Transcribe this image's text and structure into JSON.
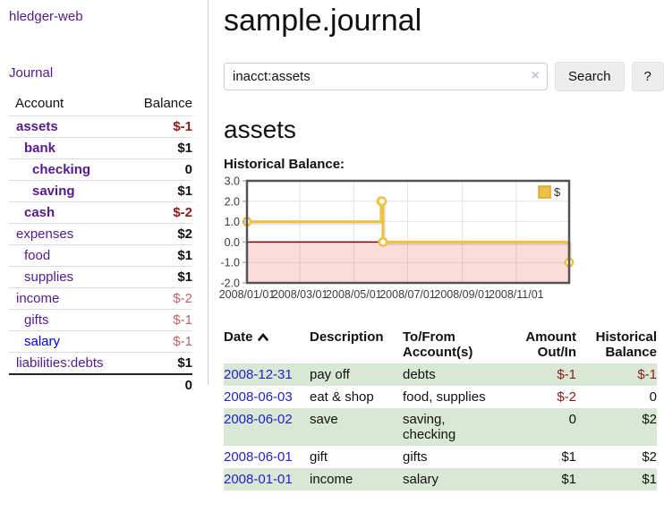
{
  "app": {
    "title": "hledger-web",
    "nav_journal": "Journal"
  },
  "sidebar": {
    "headers": {
      "account": "Account",
      "balance": "Balance"
    },
    "accounts": [
      {
        "name": "assets",
        "balance": "$-1",
        "depth": 1,
        "selected": true
      },
      {
        "name": "bank",
        "balance": "$1",
        "depth": 2,
        "selected": true
      },
      {
        "name": "checking",
        "balance": "0",
        "depth": 3,
        "selected": true
      },
      {
        "name": "saving",
        "balance": "$1",
        "depth": 3,
        "selected": true
      },
      {
        "name": "cash",
        "balance": "$-2",
        "depth": 2,
        "selected": true
      },
      {
        "name": "expenses",
        "balance": "$2",
        "depth": 1,
        "selected": false
      },
      {
        "name": "food",
        "balance": "$1",
        "depth": 2,
        "selected": false
      },
      {
        "name": "supplies",
        "balance": "$1",
        "depth": 2,
        "selected": false
      },
      {
        "name": "income",
        "balance": "$-2",
        "depth": 1,
        "selected": false
      },
      {
        "name": "gifts",
        "balance": "$-1",
        "depth": 2,
        "selected": false
      },
      {
        "name": "salary",
        "balance": "$-1",
        "depth": 2,
        "selected": false,
        "unvisited": true
      },
      {
        "name": "liabilities:debts",
        "balance": "$1",
        "depth": 1,
        "selected": false
      }
    ],
    "total": "0"
  },
  "main": {
    "title": "sample.journal",
    "search": {
      "value": "inacct:assets",
      "clear": "×",
      "button": "Search",
      "help": "?"
    },
    "account_heading": "assets",
    "chart_label": "Historical Balance:"
  },
  "chart_data": {
    "type": "line",
    "title": "Historical Balance:",
    "series": [
      {
        "name": "$",
        "color": "#edc240",
        "step": true,
        "points": [
          [
            "2008-01-01",
            1
          ],
          [
            "2008-06-01",
            2
          ],
          [
            "2008-06-02",
            2
          ],
          [
            "2008-06-03",
            0
          ],
          [
            "2008-12-31",
            -1
          ]
        ]
      }
    ],
    "xlim": [
      "2008-01-01",
      "2008-12-31"
    ],
    "ylim": [
      -2,
      3
    ],
    "x_ticks": [
      "2008-01-01",
      "2008-03-01",
      "2008-05-01",
      "2008-07-01",
      "2008-09-01",
      "2008-11-01"
    ],
    "x_tick_labels": [
      "2008/01/01",
      "2008/03/01",
      "2008/05/01",
      "2008/07/01",
      "2008/09/01",
      "2008/11/01"
    ],
    "y_ticks": [
      3,
      2,
      1,
      0,
      -1,
      -2
    ],
    "y_tick_labels": [
      "3.0",
      "2.0",
      "1.0",
      "0.0",
      "-1.0",
      "-2.0"
    ],
    "grid": true,
    "legend": {
      "label": "$",
      "position": "top-right"
    },
    "zero_line_color": "#800000",
    "negative_region_color": "rgba(235,60,60,0.18)",
    "border_color": "#545454",
    "gridline_color": "#e4e4e4"
  },
  "transactions": {
    "headers": {
      "date": "Date",
      "description": "Description",
      "accounts": "To/From Account(s)",
      "amount": "Amount Out/In",
      "balance": "Historical Balance"
    },
    "rows": [
      {
        "date": "2008-12-31",
        "description": "pay off",
        "accounts": "debts",
        "amount": "$-1",
        "balance": "$-1"
      },
      {
        "date": "2008-06-03",
        "description": "eat & shop",
        "accounts": "food, supplies",
        "amount": "$-2",
        "balance": "0"
      },
      {
        "date": "2008-06-02",
        "description": "save",
        "accounts": "saving, checking",
        "amount": "0",
        "balance": "$2"
      },
      {
        "date": "2008-06-01",
        "description": "gift",
        "accounts": "gifts",
        "amount": "$1",
        "balance": "$2"
      },
      {
        "date": "2008-01-01",
        "description": "income",
        "accounts": "salary",
        "amount": "$1",
        "balance": "$1"
      }
    ]
  }
}
